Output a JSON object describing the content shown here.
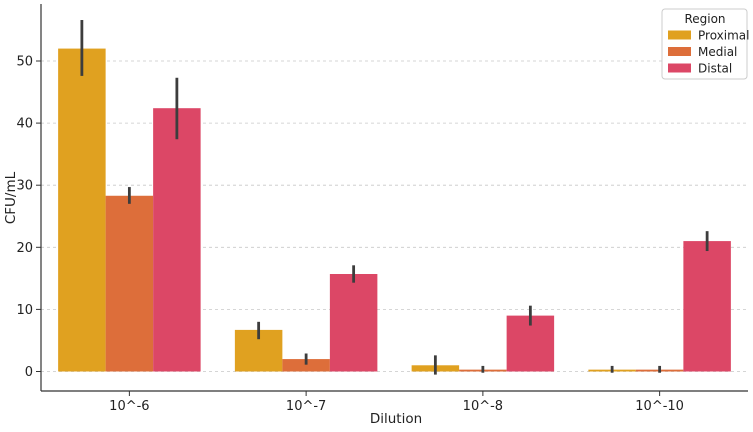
{
  "chart_data": {
    "type": "bar",
    "xlabel": "Dilution",
    "ylabel": "CFU/mL",
    "categories": [
      "10^-6",
      "10^-7",
      "10^-8",
      "10^-10"
    ],
    "ylim": [
      -3.5,
      59
    ],
    "yticks": [
      0,
      10,
      20,
      30,
      40,
      50
    ],
    "grid": "horizontal dashed",
    "legend": {
      "title": "Region",
      "placement": "top-right"
    },
    "series": [
      {
        "name": "Proximal",
        "color": "#E0A120",
        "values": [
          52.0,
          6.7,
          1.0,
          0.3
        ],
        "err_low": [
          47.6,
          5.2,
          -0.5,
          -0.2
        ],
        "err_high": [
          56.6,
          8.0,
          2.6,
          0.9
        ]
      },
      {
        "name": "Medial",
        "color": "#DD6E3A",
        "values": [
          28.3,
          2.0,
          0.3,
          0.3
        ],
        "err_low": [
          27.0,
          1.1,
          -0.2,
          -0.2
        ],
        "err_high": [
          29.7,
          2.9,
          0.9,
          0.9
        ]
      },
      {
        "name": "Distal",
        "color": "#DC4766",
        "values": [
          42.4,
          15.7,
          9.0,
          21.0
        ],
        "err_low": [
          37.4,
          14.3,
          7.4,
          19.4
        ],
        "err_high": [
          47.3,
          17.1,
          10.6,
          22.6
        ]
      }
    ]
  }
}
